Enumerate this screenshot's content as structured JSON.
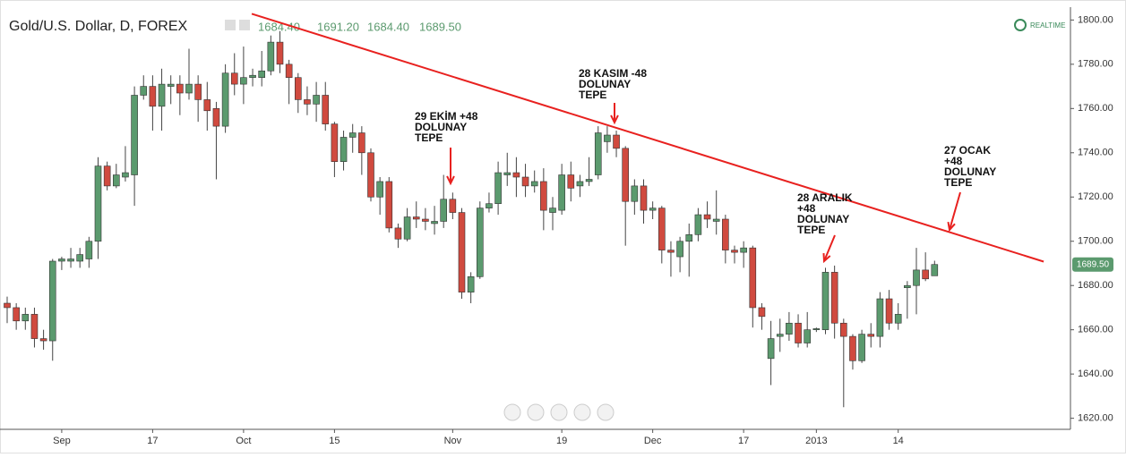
{
  "chart_data": {
    "type": "candlestick",
    "title": "Gold/U.S. Dollar, D, FOREX",
    "header_values": [
      "1684.40",
      "1691.20",
      "1684.40",
      "1689.50"
    ],
    "realtime_label": "REALTIME",
    "last_price_label": "1689.50",
    "up_color": "#5b9a6e",
    "down_color": "#d04a3f",
    "categories": [
      null,
      null,
      null,
      null,
      null,
      null,
      "Sep",
      null,
      null,
      null,
      null,
      null,
      null,
      null,
      null,
      null,
      "17",
      null,
      null,
      null,
      null,
      null,
      null,
      null,
      null,
      null,
      "Oct",
      null,
      null,
      null,
      null,
      null,
      null,
      null,
      null,
      null,
      "15",
      null,
      null,
      null,
      null,
      null,
      null,
      null,
      null,
      null,
      null,
      null,
      null,
      "Nov",
      null,
      null,
      null,
      null,
      null,
      null,
      null,
      null,
      null,
      null,
      null,
      "19",
      null,
      null,
      null,
      null,
      null,
      null,
      null,
      null,
      null,
      "Dec",
      null,
      null,
      null,
      null,
      null,
      null,
      null,
      null,
      null,
      "17",
      null,
      null,
      null,
      null,
      null,
      null,
      null,
      "2013",
      null,
      null,
      null,
      null,
      null,
      null,
      null,
      null,
      "14",
      null,
      null,
      null,
      null
    ],
    "open": [
      1672,
      1670,
      1664,
      1667,
      1656,
      1655,
      1691,
      1691,
      1691,
      1692,
      1700,
      1734,
      1725,
      1729,
      1730,
      1766,
      1770,
      1761,
      1770,
      1771,
      1767,
      1771,
      1764,
      1760,
      1752,
      1776,
      1771,
      1774,
      1774,
      1777,
      1790,
      1780,
      1774,
      1764,
      1762,
      1766,
      1753,
      1736,
      1747,
      1749,
      1740,
      1720,
      1727,
      1706,
      1701,
      1711,
      1710,
      1708,
      1709,
      1719,
      1713,
      1677,
      1684,
      1715,
      1717,
      1730,
      1731,
      1729,
      1725,
      1727,
      1713,
      1714,
      1730,
      1725,
      1727,
      1730,
      1745,
      1748,
      1742,
      1718,
      1725,
      1714,
      1715,
      1696,
      1693,
      1700,
      1703,
      1712,
      1709,
      1710,
      1696,
      1695,
      1697,
      1670,
      1647,
      1657,
      1658,
      1663,
      1654,
      1660,
      1660,
      1686,
      1663,
      1657,
      1646,
      1658,
      1657,
      1674,
      1663,
      1679,
      1680,
      1687,
      1684.4
    ],
    "high": [
      1675,
      1672,
      1670,
      1670,
      1660,
      1692,
      1693,
      1697,
      1697,
      1702,
      1738,
      1736,
      1735,
      1743,
      1770,
      1775,
      1775,
      1778,
      1775,
      1775,
      1787,
      1775,
      1772,
      1763,
      1780,
      1785,
      1788,
      1778,
      1786,
      1793,
      1795,
      1782,
      1776,
      1770,
      1772,
      1772,
      1754,
      1750,
      1753,
      1752,
      1742,
      1729,
      1729,
      1708,
      1715,
      1718,
      1715,
      1716,
      1730,
      1722,
      1715,
      1686,
      1718,
      1722,
      1736,
      1740,
      1738,
      1735,
      1732,
      1733,
      1720,
      1735,
      1736,
      1730,
      1738,
      1752,
      1752,
      1750,
      1743,
      1728,
      1728,
      1718,
      1716,
      1700,
      1702,
      1708,
      1715,
      1718,
      1723,
      1712,
      1698,
      1700,
      1698,
      1672,
      1664,
      1665,
      1668,
      1667,
      1668,
      1661,
      1688,
      1689,
      1665,
      1658,
      1660,
      1663,
      1677,
      1678,
      1672,
      1682,
      1697,
      1695,
      1691.2
    ],
    "low": [
      1663,
      1660,
      1660,
      1652,
      1651,
      1646,
      1687,
      1688,
      1688,
      1688,
      1692,
      1723,
      1724,
      1727,
      1716,
      1764,
      1750,
      1750,
      1762,
      1757,
      1764,
      1754,
      1750,
      1728,
      1749,
      1766,
      1762,
      1770,
      1770,
      1775,
      1776,
      1762,
      1758,
      1757,
      1754,
      1750,
      1729,
      1732,
      1740,
      1730,
      1718,
      1712,
      1704,
      1697,
      1700,
      1706,
      1705,
      1703,
      1706,
      1710,
      1674,
      1672,
      1683,
      1713,
      1712,
      1725,
      1720,
      1720,
      1722,
      1705,
      1705,
      1712,
      1718,
      1720,
      1725,
      1728,
      1740,
      1738,
      1698,
      1712,
      1708,
      1710,
      1690,
      1684,
      1686,
      1684,
      1700,
      1706,
      1703,
      1690,
      1690,
      1688,
      1661,
      1660,
      1635,
      1650,
      1655,
      1652,
      1652,
      1659,
      1658,
      1656,
      1625,
      1642,
      1645,
      1652,
      1652,
      1660,
      1660,
      1665,
      1667,
      1682,
      1684.4
    ],
    "close": [
      1670,
      1664,
      1667,
      1656,
      1655,
      1691,
      1692,
      1692,
      1694,
      1700,
      1734,
      1725,
      1730,
      1731,
      1766,
      1770,
      1761,
      1771,
      1771,
      1767,
      1771,
      1764,
      1759,
      1752,
      1776,
      1771,
      1774,
      1775,
      1777,
      1790,
      1780,
      1774,
      1764,
      1762,
      1766,
      1753,
      1736,
      1747,
      1749,
      1740,
      1720,
      1727,
      1706,
      1701,
      1711,
      1710,
      1709,
      1709,
      1719,
      1713,
      1677,
      1684,
      1715,
      1717,
      1731,
      1731,
      1729,
      1725,
      1727,
      1714,
      1715,
      1730,
      1724,
      1727,
      1728,
      1749,
      1748,
      1742,
      1718,
      1725,
      1714,
      1715,
      1696,
      1695,
      1700,
      1703,
      1712,
      1710,
      1710,
      1696,
      1695,
      1697,
      1670,
      1666,
      1656,
      1658,
      1663,
      1654,
      1660,
      1660.5,
      1686,
      1663,
      1657,
      1646,
      1658,
      1657,
      1674,
      1663,
      1667,
      1680,
      1687,
      1683,
      1689.5
    ],
    "ylim": [
      1615,
      1805
    ],
    "yticks": [
      {
        "value": 1620,
        "label": "1620.00"
      },
      {
        "value": 1640,
        "label": "1640.00"
      },
      {
        "value": 1660,
        "label": "1660.00"
      },
      {
        "value": 1680,
        "label": "1680.00"
      },
      {
        "value": 1700,
        "label": "1700.00"
      },
      {
        "value": 1720,
        "label": "1720.00"
      },
      {
        "value": 1740,
        "label": "1740.00"
      },
      {
        "value": 1760,
        "label": "1760.00"
      },
      {
        "value": 1780,
        "label": "1780.00"
      },
      {
        "value": 1800,
        "label": "1800.00"
      }
    ],
    "trend_line": {
      "color": "#e8211f",
      "points": [
        {
          "x": 26.9,
          "y": 1802.8
        },
        {
          "x": 114,
          "y": 1690.8
        }
      ]
    },
    "annotations": [
      {
        "lines": [
          "29 EKİM +48",
          "DOLUNAY",
          "TEPE"
        ]
      },
      {
        "lines": [
          "28 KASIM -48",
          "DOLUNAY",
          "TEPE"
        ]
      },
      {
        "lines": [
          "28 ARALIK",
          "+48",
          "DOLUNAY",
          "TEPE"
        ]
      },
      {
        "lines": [
          "27 OCAK",
          "+48",
          "DOLUNAY",
          "TEPE"
        ]
      }
    ]
  }
}
